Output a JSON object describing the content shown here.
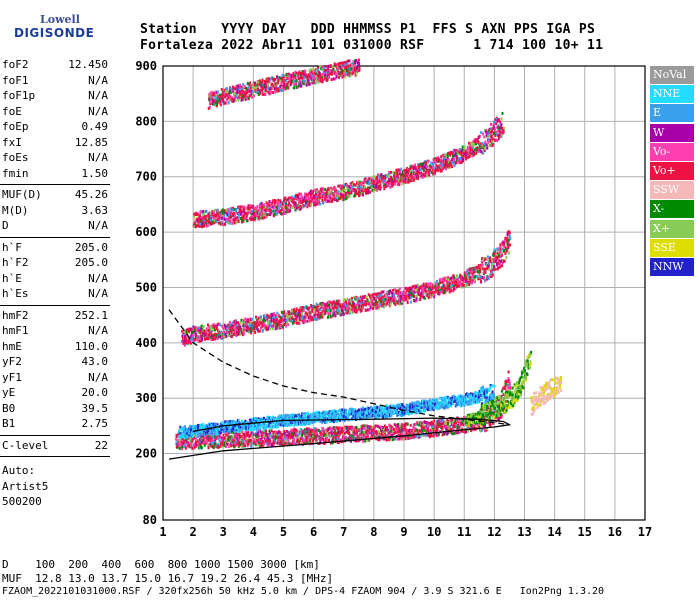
{
  "logo": {
    "top": "Lowell",
    "bottom": "DIGISONDE"
  },
  "header": {
    "line1": "Station   YYYY DAY   DDD HHMMSS P1  FFS S AXN PPS IGA PS",
    "line2": "Fortaleza 2022 Abr11 101 031000 RSF      1 714 100 10+ 11"
  },
  "params": {
    "group1": [
      {
        "name": "foF2",
        "value": "12.450"
      },
      {
        "name": "foF1",
        "value": "N/A"
      },
      {
        "name": "foF1p",
        "value": "N/A"
      },
      {
        "name": "foE",
        "value": "N/A"
      },
      {
        "name": "foEp",
        "value": "0.49"
      },
      {
        "name": "fxI",
        "value": "12.85"
      },
      {
        "name": "foEs",
        "value": "N/A"
      },
      {
        "name": "fmin",
        "value": "1.50"
      }
    ],
    "group2": [
      {
        "name": "MUF(D)",
        "value": "45.26"
      },
      {
        "name": "M(D)",
        "value": "3.63"
      },
      {
        "name": "D",
        "value": "N/A"
      }
    ],
    "group3": [
      {
        "name": "h`F",
        "value": "205.0"
      },
      {
        "name": "h`F2",
        "value": "205.0"
      },
      {
        "name": "h`E",
        "value": "N/A"
      },
      {
        "name": "h`Es",
        "value": "N/A"
      }
    ],
    "group4": [
      {
        "name": "hmF2",
        "value": "252.1"
      },
      {
        "name": "hmF1",
        "value": "N/A"
      },
      {
        "name": "hmE",
        "value": "110.0"
      },
      {
        "name": "yF2",
        "value": "43.0"
      },
      {
        "name": "yF1",
        "value": "N/A"
      },
      {
        "name": "yE",
        "value": "20.0"
      },
      {
        "name": "B0",
        "value": "39.5"
      },
      {
        "name": "B1",
        "value": "2.75"
      }
    ],
    "clevel": {
      "name": "C-level",
      "value": "22"
    },
    "auto_label": "Auto:",
    "artist": "Artist5",
    "code": "500200"
  },
  "legend": [
    {
      "label": "NoVal",
      "color": "#9a9a9a"
    },
    {
      "label": "NNE",
      "color": "#22ddff"
    },
    {
      "label": "E",
      "color": "#3aa0ee"
    },
    {
      "label": "W",
      "color": "#a800a8"
    },
    {
      "label": "Vo-",
      "color": "#ff3fb0"
    },
    {
      "label": "Vo+",
      "color": "#ee1144"
    },
    {
      "label": "SSW",
      "color": "#f5b8b8"
    },
    {
      "label": "X-",
      "color": "#008a00"
    },
    {
      "label": "X+",
      "color": "#88cc55"
    },
    {
      "label": "SSE",
      "color": "#dddd00"
    },
    {
      "label": "NNW",
      "color": "#2222cc"
    }
  ],
  "footer": {
    "line1": "D    100  200  400  600  800 1000 1500 3000 [km]",
    "line2": "MUF  12.8 13.0 13.7 15.0 16.7 19.2 26.4 45.3 [MHz]",
    "line3": "FZAOM_2022101031000.RSF / 320fx256h 50 kHz 5.0 km / DPS-4 FZAOM 904 / 3.9 S 321.6 E   Ion2Png 1.3.20"
  },
  "chart_data": {
    "type": "scatter",
    "xlim": [
      1,
      17
    ],
    "ylim": [
      80,
      900
    ],
    "x_ticks": [
      1,
      2,
      3,
      4,
      5,
      6,
      7,
      8,
      9,
      10,
      11,
      12,
      13,
      14,
      15,
      16,
      17
    ],
    "y_ticks": [
      80,
      200,
      300,
      400,
      500,
      600,
      700,
      800,
      900
    ],
    "grid": true,
    "traces": [
      {
        "name": "F echo",
        "points": [
          [
            1.4,
            225
          ],
          [
            2,
            226
          ],
          [
            3,
            228
          ],
          [
            4,
            230
          ],
          [
            5,
            232
          ],
          [
            6,
            234
          ],
          [
            7,
            237
          ],
          [
            8,
            240
          ],
          [
            9,
            243
          ],
          [
            10,
            248
          ],
          [
            11,
            255
          ],
          [
            11.8,
            268
          ],
          [
            12.2,
            290
          ],
          [
            12.5,
            340
          ]
        ]
      },
      {
        "name": "2F echo",
        "points": [
          [
            1.6,
            410
          ],
          [
            2,
            418
          ],
          [
            3,
            425
          ],
          [
            4,
            435
          ],
          [
            5,
            445
          ],
          [
            6,
            458
          ],
          [
            7,
            468
          ],
          [
            8,
            478
          ],
          [
            9,
            488
          ],
          [
            10,
            500
          ],
          [
            11,
            518
          ],
          [
            11.8,
            540
          ],
          [
            12.2,
            560
          ],
          [
            12.5,
            590
          ]
        ]
      },
      {
        "name": "3F echo",
        "points": [
          [
            2,
            625
          ],
          [
            3,
            630
          ],
          [
            4,
            638
          ],
          [
            5,
            650
          ],
          [
            6,
            665
          ],
          [
            7,
            675
          ],
          [
            8,
            690
          ],
          [
            9,
            705
          ],
          [
            10,
            722
          ],
          [
            11,
            745
          ],
          [
            11.8,
            775
          ],
          [
            12.3,
            800
          ]
        ]
      },
      {
        "name": "4F echo",
        "points": [
          [
            2.5,
            840
          ],
          [
            3,
            848
          ],
          [
            4,
            860
          ],
          [
            5,
            873
          ],
          [
            6,
            885
          ],
          [
            7,
            897
          ],
          [
            7.5,
            900
          ]
        ]
      },
      {
        "name": "E-direction echo",
        "points": [
          [
            1.5,
            240
          ],
          [
            3,
            250
          ],
          [
            5,
            262
          ],
          [
            7,
            272
          ],
          [
            9,
            282
          ],
          [
            10,
            292
          ],
          [
            11,
            300
          ],
          [
            12,
            310
          ]
        ]
      },
      {
        "name": "X echo",
        "points": [
          [
            11,
            260
          ],
          [
            11.5,
            270
          ],
          [
            12,
            285
          ],
          [
            12.5,
            300
          ],
          [
            12.8,
            320
          ],
          [
            13,
            350
          ],
          [
            13.2,
            380
          ]
        ]
      },
      {
        "name": "SSW echo",
        "points": [
          [
            13.2,
            290
          ],
          [
            13.4,
            300
          ],
          [
            13.6,
            310
          ],
          [
            13.8,
            318
          ],
          [
            14,
            325
          ],
          [
            14.2,
            330
          ]
        ]
      }
    ],
    "profile_solid": [
      [
        1.2,
        190
      ],
      [
        3,
        205
      ],
      [
        6,
        218
      ],
      [
        9,
        232
      ],
      [
        11,
        243
      ],
      [
        12,
        248
      ],
      [
        12.5,
        252
      ],
      [
        12.3,
        258
      ],
      [
        11.5,
        262
      ],
      [
        10,
        264
      ],
      [
        8,
        262
      ],
      [
        5,
        260
      ],
      [
        3,
        250
      ],
      [
        2,
        240
      ]
    ],
    "profile_dashed": [
      [
        1.2,
        460
      ],
      [
        2,
        400
      ],
      [
        3,
        365
      ],
      [
        4,
        340
      ],
      [
        5,
        322
      ],
      [
        6,
        310
      ],
      [
        7,
        302
      ],
      [
        8,
        290
      ],
      [
        9,
        278
      ],
      [
        10,
        268
      ],
      [
        11,
        262
      ],
      [
        12,
        256
      ],
      [
        12.5,
        252
      ]
    ]
  }
}
